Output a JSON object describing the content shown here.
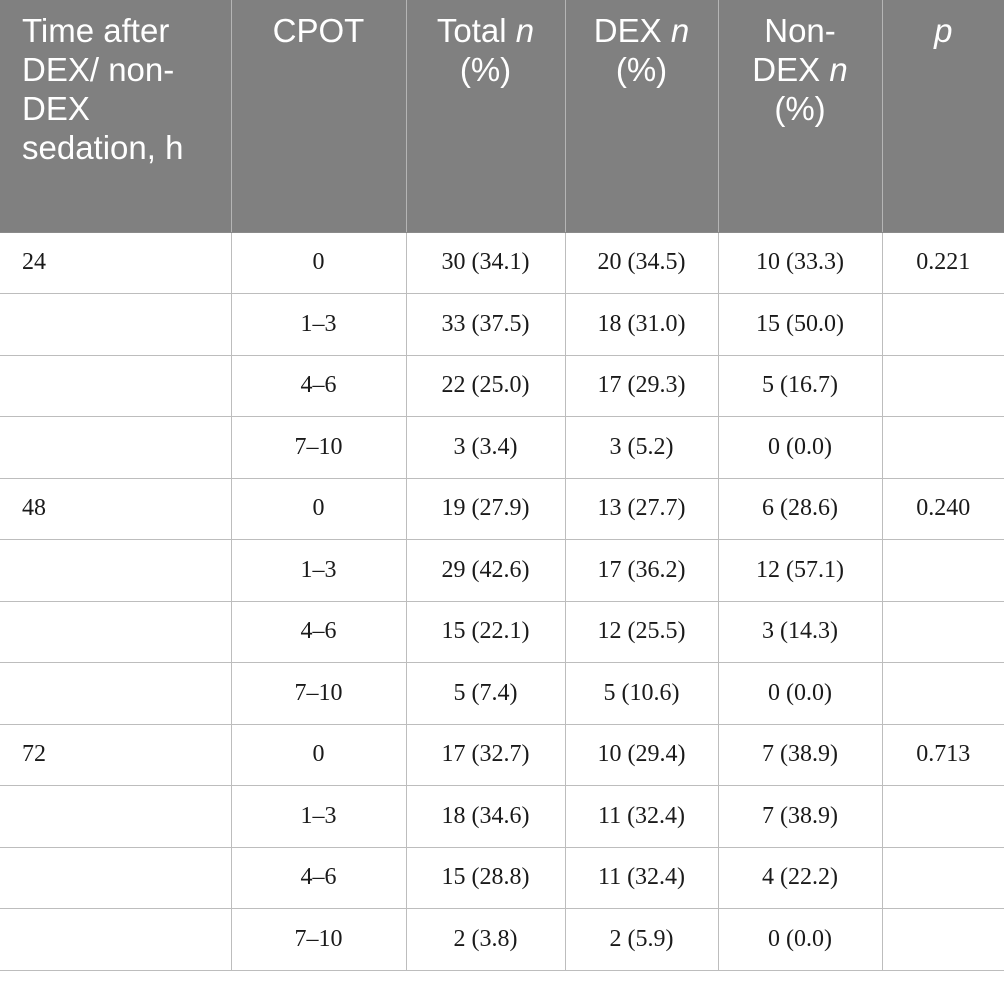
{
  "table": {
    "header": {
      "time": "Time after DEX/ non-DEX sedation, h",
      "cpot": "CPOT",
      "total_label": "Total ",
      "total_n": "n",
      "total_pct": " (%)",
      "dex_label": "DEX ",
      "dex_n": "n",
      "dex_pct": " (%)",
      "nondex_label": "Non-DEX ",
      "nondex_n": "n",
      "nondex_pct": " (%)",
      "p": "p"
    },
    "rows": [
      {
        "time": "24",
        "cpot": "0",
        "total": "30 (34.1)",
        "dex": "20 (34.5)",
        "nondex": "10 (33.3)",
        "p": "0.221"
      },
      {
        "time": "",
        "cpot": "1–3",
        "total": "33 (37.5)",
        "dex": "18 (31.0)",
        "nondex": "15 (50.0)",
        "p": ""
      },
      {
        "time": "",
        "cpot": "4–6",
        "total": "22 (25.0)",
        "dex": "17 (29.3)",
        "nondex": "5 (16.7)",
        "p": ""
      },
      {
        "time": "",
        "cpot": "7–10",
        "total": "3 (3.4)",
        "dex": "3 (5.2)",
        "nondex": "0 (0.0)",
        "p": ""
      },
      {
        "time": "48",
        "cpot": "0",
        "total": "19 (27.9)",
        "dex": "13 (27.7)",
        "nondex": "6 (28.6)",
        "p": "0.240"
      },
      {
        "time": "",
        "cpot": "1–3",
        "total": "29 (42.6)",
        "dex": "17 (36.2)",
        "nondex": "12 (57.1)",
        "p": ""
      },
      {
        "time": "",
        "cpot": "4–6",
        "total": "15 (22.1)",
        "dex": "12 (25.5)",
        "nondex": "3 (14.3)",
        "p": ""
      },
      {
        "time": "",
        "cpot": "7–10",
        "total": "5 (7.4)",
        "dex": "5 (10.6)",
        "nondex": "0 (0.0)",
        "p": ""
      },
      {
        "time": "72",
        "cpot": "0",
        "total": "17 (32.7)",
        "dex": "10 (29.4)",
        "nondex": "7 (38.9)",
        "p": "0.713"
      },
      {
        "time": "",
        "cpot": "1–3",
        "total": "18 (34.6)",
        "dex": "11 (32.4)",
        "nondex": "7 (38.9)",
        "p": ""
      },
      {
        "time": "",
        "cpot": "4–6",
        "total": "15 (28.8)",
        "dex": "11 (32.4)",
        "nondex": "4 (22.2)",
        "p": ""
      },
      {
        "time": "",
        "cpot": "7–10",
        "total": "2 (3.8)",
        "dex": "2 (5.9)",
        "nondex": "0 (0.0)",
        "p": ""
      }
    ]
  }
}
